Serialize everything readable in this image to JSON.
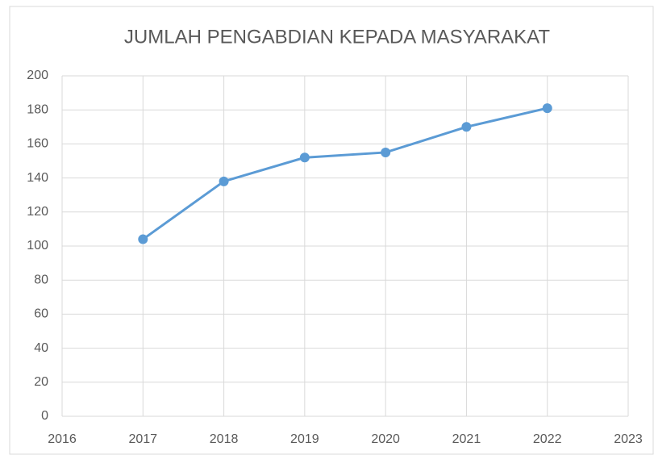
{
  "chart_data": {
    "type": "line",
    "title": "JUMLAH PENGABDIAN KEPADA MASYARAKAT",
    "x": [
      2017,
      2018,
      2019,
      2020,
      2021,
      2022
    ],
    "values": [
      104,
      138,
      152,
      155,
      170,
      181
    ],
    "color": "#5b9bd5",
    "xlim": [
      2016,
      2023
    ],
    "xticks": [
      2016,
      2017,
      2018,
      2019,
      2020,
      2021,
      2022,
      2023
    ],
    "ylim": [
      0,
      200
    ],
    "yticks": [
      0,
      20,
      40,
      60,
      80,
      100,
      120,
      140,
      160,
      180,
      200
    ],
    "grid": true
  }
}
